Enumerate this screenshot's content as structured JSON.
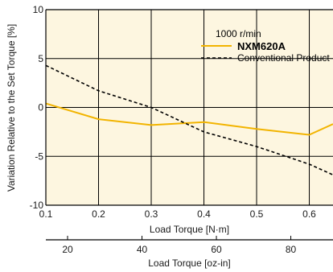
{
  "chart_data": {
    "type": "line",
    "title": "",
    "xlabel": "Load Torque [N·m]",
    "ylabel": "Variation Relative to the Set Torque [%]",
    "x2label": "Load Torque [oz-in]",
    "xlim": [
      0.1,
      0.645
    ],
    "ylim": [
      -10,
      10
    ],
    "x_ticks": [
      0.1,
      0.2,
      0.3,
      0.4,
      0.5,
      0.6
    ],
    "x_tick_labels": [
      "0.1",
      "0.2",
      "0.3",
      "0.4",
      "0.5",
      "0.6"
    ],
    "y_ticks": [
      -10,
      -5,
      0,
      5,
      10
    ],
    "y_tick_labels": [
      "-10",
      "-5",
      "0",
      "5",
      "10"
    ],
    "x2_ticks": [
      20,
      40,
      60,
      80
    ],
    "x2_tick_labels": [
      "20",
      "40",
      "60",
      "80"
    ],
    "x2_to_x_factor": 0.00706155,
    "grid": true,
    "background": "#fdf6e0",
    "legend": {
      "placement": "top-right",
      "header": "1000 r/min"
    },
    "series": [
      {
        "name": "NXM620A",
        "style": "solid",
        "color": "#f2b400",
        "x": [
          0.1,
          0.2,
          0.3,
          0.4,
          0.5,
          0.6,
          0.645
        ],
        "y": [
          0.4,
          -1.2,
          -1.8,
          -1.5,
          -2.2,
          -2.8,
          -1.7
        ]
      },
      {
        "name": "Conventional Product",
        "style": "dashed",
        "color": "#000000",
        "x": [
          0.1,
          0.2,
          0.3,
          0.4,
          0.5,
          0.6,
          0.645
        ],
        "y": [
          4.3,
          1.7,
          0.0,
          -2.5,
          -4.0,
          -5.8,
          -6.9
        ]
      }
    ]
  }
}
